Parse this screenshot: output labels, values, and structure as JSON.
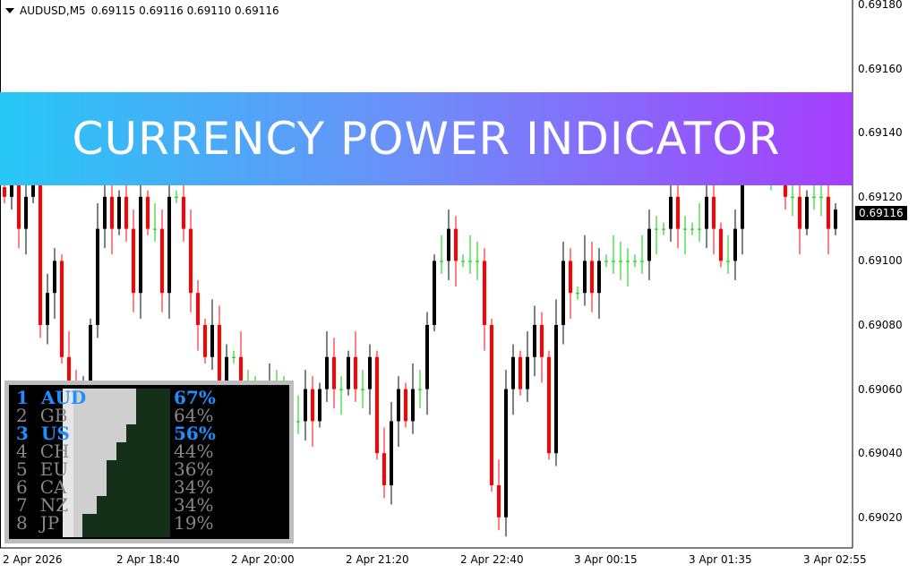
{
  "header": {
    "symbol": "AUDUSD,M5",
    "ohlc": "0.69115 0.69116 0.69110 0.69116"
  },
  "banner": "CURRENCY POWER INDICATOR",
  "price_axis": [
    "0.69180",
    "0.69160",
    "0.69140",
    "0.69120",
    "0.69100",
    "0.69080",
    "0.69060",
    "0.69040",
    "0.69020"
  ],
  "current_price": "0.69116",
  "time_axis": [
    "2 Apr 2026",
    "2 Apr 18:40",
    "2 Apr 20:00",
    "2 Apr 21:20",
    "2 Apr 22:40",
    "3 Apr 00:15",
    "3 Apr 01:35",
    "3 Apr 02:55"
  ],
  "colors": {
    "bull": "#000000",
    "bear": "#ff0000",
    "doji": "#00cc00",
    "highlight": "#1e8fff",
    "muted": "#888888"
  },
  "indicator": {
    "rows": [
      {
        "rank": "1",
        "cur": "AUD",
        "pct": "67%",
        "hi": true
      },
      {
        "rank": "2",
        "cur": "GB",
        "pct": "64%",
        "hi": false
      },
      {
        "rank": "3",
        "cur": "US",
        "pct": "56%",
        "hi": true
      },
      {
        "rank": "4",
        "cur": "CH",
        "pct": "44%",
        "hi": false
      },
      {
        "rank": "5",
        "cur": "EU",
        "pct": "36%",
        "hi": false
      },
      {
        "rank": "6",
        "cur": "CA",
        "pct": "34%",
        "hi": false
      },
      {
        "rank": "7",
        "cur": "NZ",
        "pct": "34%",
        "hi": false
      },
      {
        "rank": "8",
        "cur": "JP",
        "pct": "19%",
        "hi": false
      }
    ]
  },
  "closes": [
    0.6912,
    0.6913,
    0.6911,
    0.6912,
    0.6913,
    0.6908,
    0.6909,
    0.691,
    0.6907,
    0.6906,
    0.6905,
    0.6906,
    0.6908,
    0.6911,
    0.6912,
    0.6911,
    0.6912,
    0.6911,
    0.6909,
    0.6912,
    0.6911,
    0.6911,
    0.6909,
    0.6912,
    0.6912,
    0.6911,
    0.6909,
    0.6908,
    0.6907,
    0.6908,
    0.6906,
    0.6907,
    0.6907,
    0.6906,
    0.6906,
    0.6906,
    0.6905,
    0.6906,
    0.6906,
    0.6906,
    0.6905,
    0.6905,
    0.6906,
    0.6905,
    0.6906,
    0.6907,
    0.6906,
    0.6906,
    0.6907,
    0.6906,
    0.6906,
    0.6907,
    0.6904,
    0.6903,
    0.6905,
    0.6906,
    0.6905,
    0.6906,
    0.6906,
    0.6908,
    0.691,
    0.691,
    0.6911,
    0.691,
    0.691,
    0.691,
    0.691,
    0.6908,
    0.6903,
    0.6902,
    0.6906,
    0.6907,
    0.6906,
    0.6907,
    0.6908,
    0.6907,
    0.6904,
    0.6908,
    0.691,
    0.6909,
    0.6909,
    0.691,
    0.6909,
    0.691,
    0.691,
    0.691,
    0.691,
    0.691,
    0.691,
    0.691,
    0.6911,
    0.6911,
    0.6911,
    0.6912,
    0.6911,
    0.6911,
    0.6911,
    0.6911,
    0.6912,
    0.6911,
    0.691,
    0.691,
    0.6911,
    0.6913,
    0.6914,
    0.6913,
    0.6913,
    0.6913,
    0.6913,
    0.6912,
    0.6912,
    0.6911,
    0.6912,
    0.6912,
    0.6912,
    0.6911,
    0.69116
  ]
}
